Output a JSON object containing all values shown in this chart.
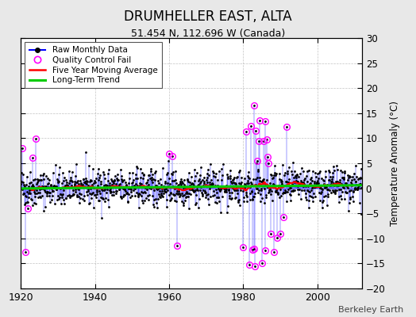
{
  "title": "DRUMHELLER EAST, ALTA",
  "subtitle": "51.454 N, 112.696 W (Canada)",
  "ylabel": "Temperature Anomaly (°C)",
  "watermark": "Berkeley Earth",
  "xlim": [
    1920,
    2012
  ],
  "ylim": [
    -20,
    30
  ],
  "yticks": [
    -20,
    -15,
    -10,
    -5,
    0,
    5,
    10,
    15,
    20,
    25,
    30
  ],
  "xticks": [
    1920,
    1940,
    1960,
    1980,
    2000
  ],
  "bg_color": "#e8e8e8",
  "plot_bg_color": "#ffffff",
  "raw_line_color": "#0000ff",
  "raw_dot_color": "#000000",
  "qc_fail_color": "#ff00ff",
  "moving_avg_color": "#ff0000",
  "trend_color": "#00cc00",
  "legend_entries": [
    "Raw Monthly Data",
    "Quality Control Fail",
    "Five Year Moving Average",
    "Long-Term Trend"
  ],
  "seed": 42
}
